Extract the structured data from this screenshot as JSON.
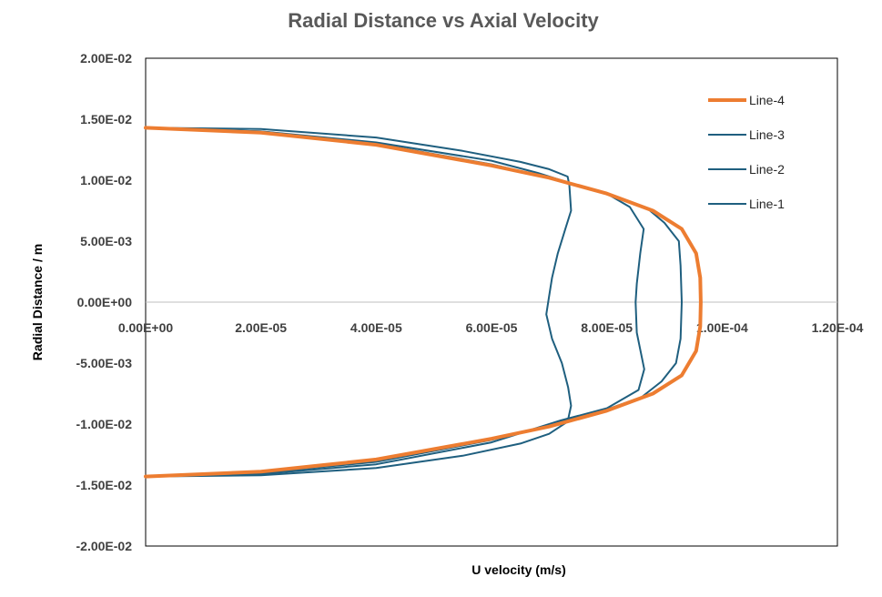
{
  "chart_data": {
    "type": "line",
    "title": "Radial Distance vs Axial Velocity",
    "xlabel": "U velocity (m/s)",
    "ylabel": "Radial Distance / m",
    "xlim": [
      0,
      0.00012
    ],
    "ylim": [
      -0.02,
      0.02
    ],
    "x_ticks": [
      "0.00E+00",
      "2.00E-05",
      "4.00E-05",
      "6.00E-05",
      "8.00E-05",
      "1.00E-04",
      "1.20E-04"
    ],
    "y_ticks": [
      "2.00E-02",
      "1.50E-02",
      "1.00E-02",
      "5.00E-03",
      "0.00E+00",
      "-5.00E-03",
      "-1.00E-02",
      "-1.50E-02",
      "-2.00E-02"
    ],
    "grid": false,
    "legend": "top-right",
    "colors": {
      "orange": "#ed7d31",
      "blue": "#1f5f7f"
    },
    "series": [
      {
        "name": "Line-4",
        "color": "#ed7d31",
        "width": 4,
        "points": [
          [
            0.0,
            0.0143
          ],
          [
            2e-05,
            0.0139
          ],
          [
            4e-05,
            0.0129
          ],
          [
            6e-05,
            0.0112
          ],
          [
            7e-05,
            0.0102
          ],
          [
            8e-05,
            0.0089
          ],
          [
            8.8e-05,
            0.0075
          ],
          [
            9.3e-05,
            0.006
          ],
          [
            9.55e-05,
            0.004
          ],
          [
            9.62e-05,
            0.002
          ],
          [
            9.63e-05,
            0.0
          ],
          [
            9.62e-05,
            -0.002
          ],
          [
            9.55e-05,
            -0.004
          ],
          [
            9.3e-05,
            -0.006
          ],
          [
            8.8e-05,
            -0.0075
          ],
          [
            8e-05,
            -0.0089
          ],
          [
            7e-05,
            -0.0102
          ],
          [
            6e-05,
            -0.0112
          ],
          [
            4e-05,
            -0.0129
          ],
          [
            2e-05,
            -0.0139
          ],
          [
            0.0,
            -0.0143
          ]
        ]
      },
      {
        "name": "Line-3",
        "color": "#1f5f7f",
        "width": 2,
        "points": [
          [
            0.0,
            0.0143
          ],
          [
            2e-05,
            0.014
          ],
          [
            4e-05,
            0.013
          ],
          [
            6e-05,
            0.0113
          ],
          [
            7e-05,
            0.0102
          ],
          [
            8e-05,
            0.0089
          ],
          [
            8.7e-05,
            0.0077
          ],
          [
            9e-05,
            0.0065
          ],
          [
            9.25e-05,
            0.005
          ],
          [
            9.28e-05,
            0.003
          ],
          [
            9.3e-05,
            0.0
          ],
          [
            9.28e-05,
            -0.003
          ],
          [
            9.2e-05,
            -0.005
          ],
          [
            8.95e-05,
            -0.0065
          ],
          [
            8.6e-05,
            -0.0078
          ],
          [
            8e-05,
            -0.0088
          ],
          [
            7e-05,
            -0.0101
          ],
          [
            6e-05,
            -0.0113
          ],
          [
            4e-05,
            -0.0131
          ],
          [
            2e-05,
            -0.014
          ],
          [
            0.0,
            -0.0143
          ]
        ]
      },
      {
        "name": "Line-2",
        "color": "#1f5f7f",
        "width": 2,
        "points": [
          [
            0.0,
            0.0143
          ],
          [
            2e-05,
            0.014
          ],
          [
            4e-05,
            0.0131
          ],
          [
            6e-05,
            0.0116
          ],
          [
            6.8e-05,
            0.0106
          ],
          [
            7.4e-05,
            0.0097
          ],
          [
            8e-05,
            0.0089
          ],
          [
            8.4e-05,
            0.0078
          ],
          [
            8.64e-05,
            0.006
          ],
          [
            8.58e-05,
            0.004
          ],
          [
            8.52e-05,
            0.0015
          ],
          [
            8.5e-05,
            0.0
          ],
          [
            8.52e-05,
            -0.0025
          ],
          [
            8.65e-05,
            -0.0055
          ],
          [
            8.55e-05,
            -0.0072
          ],
          [
            8e-05,
            -0.0087
          ],
          [
            7.2e-05,
            -0.0097
          ],
          [
            6.6e-05,
            -0.0106
          ],
          [
            6e-05,
            -0.0115
          ],
          [
            4e-05,
            -0.0133
          ],
          [
            2e-05,
            -0.0141
          ],
          [
            0.0,
            -0.0143
          ]
        ]
      },
      {
        "name": "Line-1",
        "color": "#1f5f7f",
        "width": 2,
        "points": [
          [
            0.0,
            0.0143
          ],
          [
            2e-05,
            0.0142
          ],
          [
            4e-05,
            0.0135
          ],
          [
            5.5e-05,
            0.0124
          ],
          [
            6.5e-05,
            0.0115
          ],
          [
            7e-05,
            0.0109
          ],
          [
            7.32e-05,
            0.0103
          ],
          [
            7.35e-05,
            0.0096
          ],
          [
            7.38e-05,
            0.0075
          ],
          [
            7.28e-05,
            0.006
          ],
          [
            7.15e-05,
            0.004
          ],
          [
            7.05e-05,
            0.002
          ],
          [
            7e-05,
            0.0005
          ],
          [
            6.95e-05,
            -0.001
          ],
          [
            7.05e-05,
            -0.003
          ],
          [
            7.22e-05,
            -0.005
          ],
          [
            7.33e-05,
            -0.007
          ],
          [
            7.38e-05,
            -0.0085
          ],
          [
            7.32e-05,
            -0.0098
          ],
          [
            7e-05,
            -0.0108
          ],
          [
            6.5e-05,
            -0.0116
          ],
          [
            5.5e-05,
            -0.0126
          ],
          [
            4e-05,
            -0.0136
          ],
          [
            2e-05,
            -0.0142
          ],
          [
            0.0,
            -0.0143
          ]
        ]
      }
    ]
  }
}
